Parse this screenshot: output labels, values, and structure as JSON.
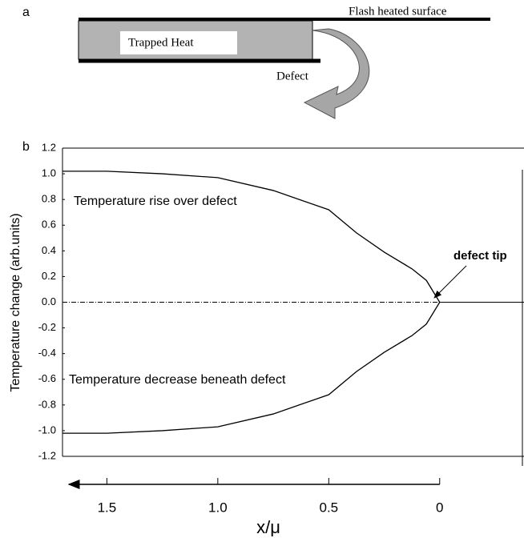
{
  "panel_labels": [
    "a",
    "b"
  ],
  "diagram": {
    "surface_label": "Flash heated surface",
    "trapped_heat": "Trapped Heat",
    "defect": "Defect"
  },
  "chart_data": {
    "type": "line",
    "xlabel": "x/μ",
    "ylabel": "Temperature change (arb.units)",
    "annotations": [
      "Temperature rise over defect",
      "Temperature decrease beneath defect",
      "defect tip"
    ],
    "series": [
      {
        "color": "#000000",
        "x": [
          1.7,
          1.5,
          1.25,
          1.0,
          0.75,
          0.5,
          0.375,
          0.25,
          0.125,
          0.06,
          0
        ],
        "values": [
          1.02,
          1.02,
          1.0,
          0.97,
          0.87,
          0.72,
          0.54,
          0.39,
          0.26,
          0.17,
          0
        ]
      },
      {
        "color": "#000000",
        "x": [
          1.7,
          1.5,
          1.25,
          1.0,
          0.75,
          0.5,
          0.375,
          0.25,
          0.125,
          0.06,
          0
        ],
        "values": [
          -1.02,
          -1.02,
          -1.0,
          -0.97,
          -0.87,
          -0.72,
          -0.54,
          -0.39,
          -0.26,
          -0.17,
          0
        ]
      }
    ],
    "xlim": [
      1.7,
      -0.38
    ],
    "xticks": [
      1.5,
      {
        "value": 1,
        "label": "1.0"
      },
      0.5,
      0
    ],
    "ylim": [
      -1.2,
      1.2
    ],
    "yticks": [
      -1.2,
      {
        "value": -1,
        "label": "-1.0"
      },
      -0.8,
      -0.6,
      -0.4,
      -0.2,
      {
        "value": 0,
        "label": "0.0"
      },
      0.2,
      0.4,
      0.6,
      0.8,
      {
        "value": 1,
        "label": "1.0"
      },
      1.2
    ]
  }
}
